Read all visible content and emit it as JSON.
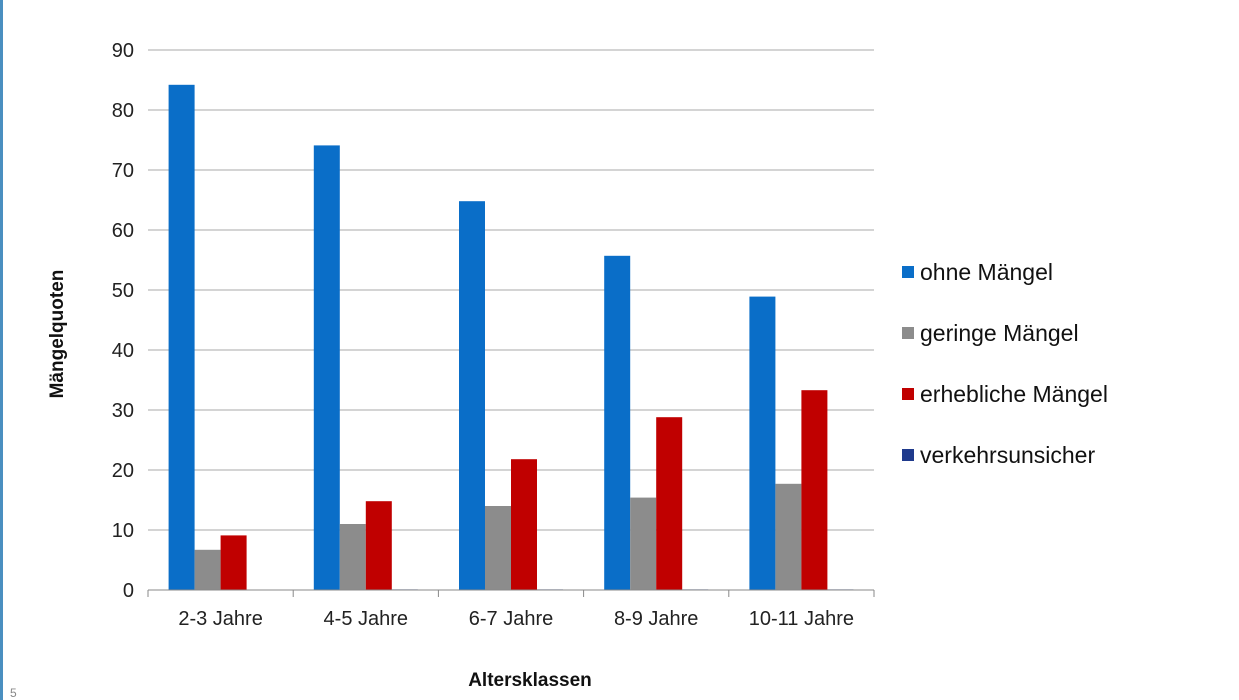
{
  "page_number": "5",
  "chart_data": {
    "type": "bar",
    "title": "",
    "xlabel": "Altersklassen",
    "ylabel": "Mängelquoten",
    "ylim": [
      0,
      90
    ],
    "yticks": [
      "0",
      "10",
      "20",
      "30",
      "40",
      "50",
      "60",
      "70",
      "80",
      "90"
    ],
    "grid": true,
    "legend_position": "right",
    "categories": [
      "2-3 Jahre",
      "4-5 Jahre",
      "6-7 Jahre",
      "8-9 Jahre",
      "10-11 Jahre"
    ],
    "series": [
      {
        "name": "ohne Mängel",
        "color": "#0a6ec8",
        "values": [
          84.2,
          74.1,
          64.8,
          55.7,
          48.9
        ]
      },
      {
        "name": "geringe Mängel",
        "color": "#8c8c8c",
        "values": [
          6.7,
          11.0,
          14.0,
          15.4,
          17.7
        ]
      },
      {
        "name": "erhebliche Mängel",
        "color": "#c00000",
        "values": [
          9.1,
          14.8,
          21.8,
          28.8,
          33.3
        ]
      },
      {
        "name": "verkehrsunsicher",
        "color": "#1f3a8c",
        "values": [
          0.0,
          0.1,
          0.1,
          0.1,
          0.1
        ]
      }
    ]
  }
}
